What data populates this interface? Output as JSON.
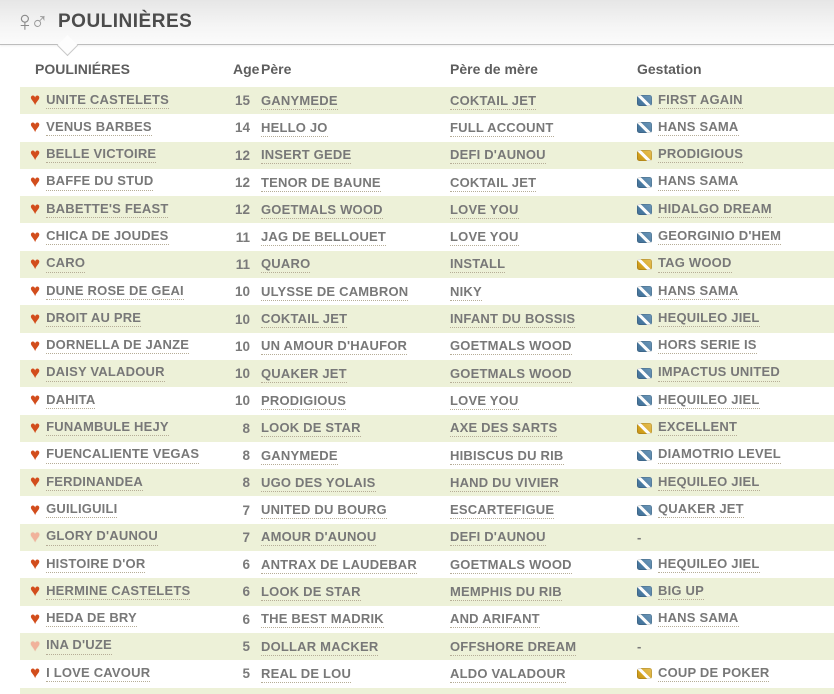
{
  "header": {
    "title": "POULINIÈRES",
    "icon": "female-male-gender-symbol",
    "female_glyph": "♀",
    "male_glyph": "♂"
  },
  "table": {
    "columns": {
      "mares": "POULINIÉRES",
      "age": "Age",
      "sire": "Père",
      "damsire": "Père de mère",
      "gestation": "Gestation"
    },
    "empty_marker": "-",
    "rows": [
      {
        "name": "UNITE CASTELETS",
        "age": "15",
        "sire": "GANYMEDE",
        "damsire": "COKTAIL JET",
        "gestation": "FIRST AGAIN",
        "gestation_icon": "blue",
        "favorite": true
      },
      {
        "name": "VENUS BARBES",
        "age": "14",
        "sire": "HELLO JO",
        "damsire": "FULL ACCOUNT",
        "gestation": "HANS SAMA",
        "gestation_icon": "blue",
        "favorite": true
      },
      {
        "name": "BELLE VICTOIRE",
        "age": "12",
        "sire": "INSERT GEDE",
        "damsire": "DEFI D'AUNOU",
        "gestation": "PRODIGIOUS",
        "gestation_icon": "yellow",
        "favorite": true
      },
      {
        "name": "BAFFE DU STUD",
        "age": "12",
        "sire": "TENOR DE BAUNE",
        "damsire": "COKTAIL JET",
        "gestation": "HANS SAMA",
        "gestation_icon": "blue",
        "favorite": true
      },
      {
        "name": "BABETTE'S FEAST",
        "age": "12",
        "sire": "GOETMALS WOOD",
        "damsire": "LOVE YOU",
        "gestation": "HIDALGO DREAM",
        "gestation_icon": "blue",
        "favorite": true
      },
      {
        "name": "CHICA DE JOUDES",
        "age": "11",
        "sire": "JAG DE BELLOUET",
        "damsire": "LOVE YOU",
        "gestation": "GEORGINIO D'HEM",
        "gestation_icon": "blue",
        "favorite": true
      },
      {
        "name": "CARO",
        "age": "11",
        "sire": "QUARO",
        "damsire": "INSTALL",
        "gestation": "TAG WOOD",
        "gestation_icon": "yellow",
        "favorite": true
      },
      {
        "name": "DUNE ROSE DE GEAI",
        "age": "10",
        "sire": "ULYSSE DE CAMBRON",
        "damsire": "NIKY",
        "gestation": "HANS SAMA",
        "gestation_icon": "blue",
        "favorite": true
      },
      {
        "name": "DROIT AU PRE",
        "age": "10",
        "sire": "COKTAIL JET",
        "damsire": "INFANT DU BOSSIS",
        "gestation": "HEQUILEO JIEL",
        "gestation_icon": "blue",
        "favorite": true
      },
      {
        "name": "DORNELLA DE JANZE",
        "age": "10",
        "sire": "UN AMOUR D'HAUFOR",
        "damsire": "GOETMALS WOOD",
        "gestation": "HORS SERIE IS",
        "gestation_icon": "blue",
        "favorite": true
      },
      {
        "name": "DAISY VALADOUR",
        "age": "10",
        "sire": "QUAKER JET",
        "damsire": "GOETMALS WOOD",
        "gestation": "IMPACTUS UNITED",
        "gestation_icon": "blue",
        "favorite": true
      },
      {
        "name": "DAHITA",
        "age": "10",
        "sire": "PRODIGIOUS",
        "damsire": "LOVE YOU",
        "gestation": "HEQUILEO JIEL",
        "gestation_icon": "blue",
        "favorite": true
      },
      {
        "name": "FUNAMBULE HEJY",
        "age": "8",
        "sire": "LOOK DE STAR",
        "damsire": "AXE DES SARTS",
        "gestation": "EXCELLENT",
        "gestation_icon": "yellow",
        "favorite": true
      },
      {
        "name": "FUENCALIENTE VEGAS",
        "age": "8",
        "sire": "GANYMEDE",
        "damsire": "HIBISCUS DU RIB",
        "gestation": "DIAMOTRIO LEVEL",
        "gestation_icon": "blue",
        "favorite": true
      },
      {
        "name": "FERDINANDEA",
        "age": "8",
        "sire": "UGO DES YOLAIS",
        "damsire": "HAND DU VIVIER",
        "gestation": "HEQUILEO JIEL",
        "gestation_icon": "blue",
        "favorite": true
      },
      {
        "name": "GUILIGUILI",
        "age": "7",
        "sire": "UNITED DU BOURG",
        "damsire": "ESCARTEFIGUE",
        "gestation": "QUAKER JET",
        "gestation_icon": "blue",
        "favorite": true
      },
      {
        "name": "GLORY D'AUNOU",
        "age": "7",
        "sire": "AMOUR D'AUNOU",
        "damsire": "DEFI D'AUNOU",
        "gestation": null,
        "gestation_icon": null,
        "favorite": false
      },
      {
        "name": "HISTOIRE D'OR",
        "age": "6",
        "sire": "ANTRAX DE LAUDEBAR",
        "damsire": "GOETMALS WOOD",
        "gestation": "HEQUILEO JIEL",
        "gestation_icon": "blue",
        "favorite": true
      },
      {
        "name": "HERMINE CASTELETS",
        "age": "6",
        "sire": "LOOK DE STAR",
        "damsire": "MEMPHIS DU RIB",
        "gestation": "BIG UP",
        "gestation_icon": "blue",
        "favorite": true
      },
      {
        "name": "HEDA DE BRY",
        "age": "6",
        "sire": "THE BEST MADRIK",
        "damsire": "AND ARIFANT",
        "gestation": "HANS SAMA",
        "gestation_icon": "blue",
        "favorite": true
      },
      {
        "name": "INA D'UZE",
        "age": "5",
        "sire": "DOLLAR MACKER",
        "damsire": "OFFSHORE DREAM",
        "gestation": null,
        "gestation_icon": null,
        "favorite": false
      },
      {
        "name": "I LOVE CAVOUR",
        "age": "5",
        "sire": "REAL DE LOU",
        "damsire": "ALDO VALADOUR",
        "gestation": "COUP DE POKER",
        "gestation_icon": "yellow",
        "favorite": true
      }
    ]
  },
  "colors": {
    "row_stripe": "#edf1d8",
    "heart_filled": "#d24d1c",
    "heart_pale": "#f1b29b",
    "gestation_blue": "#4a7ba3",
    "gestation_yellow": "#d5a41e",
    "link_text": "#787878",
    "title_text": "#4c4c4c"
  }
}
